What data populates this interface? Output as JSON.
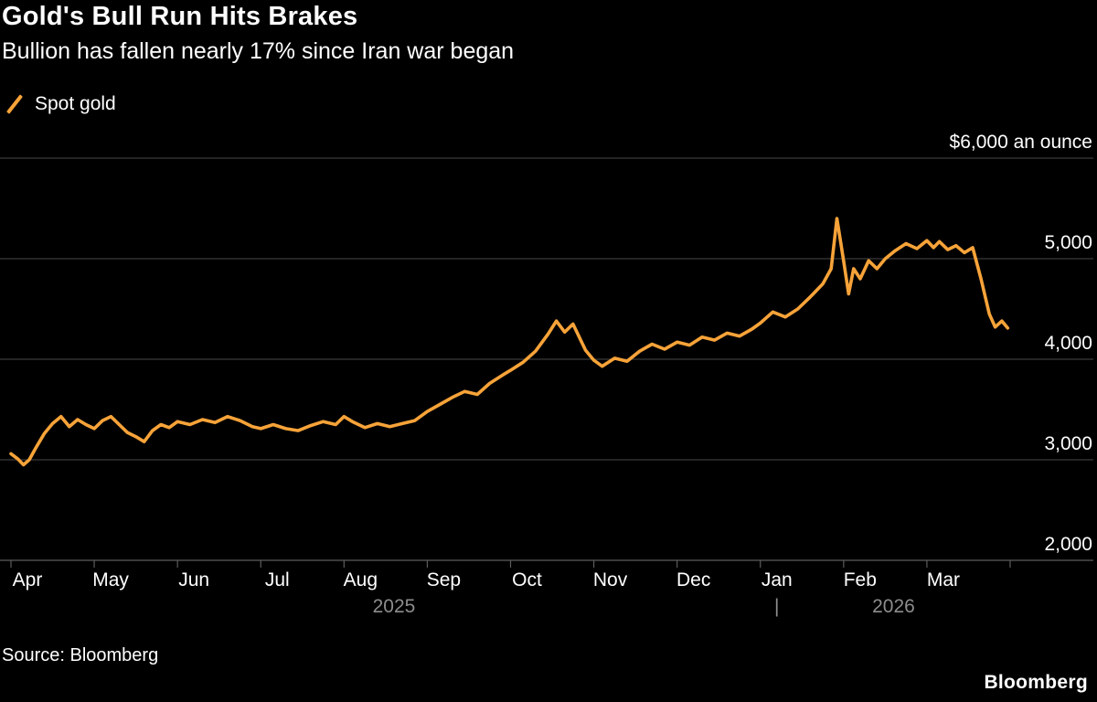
{
  "footer": {
    "source": "Source: Bloomberg",
    "brand": "Bloomberg"
  },
  "chart_data": {
    "type": "line",
    "title": "Gold's Bull Run Hits Brakes",
    "subtitle": "Bullion has fallen nearly 17% since Iran war began",
    "unit_label": "$6,000 an ounce",
    "legend": [
      {
        "name": "Spot gold",
        "color": "#f7a339"
      }
    ],
    "grid": "horizontal",
    "legend_position": "top-left",
    "ylim": [
      2000,
      6000
    ],
    "y_ticks": [
      2000,
      3000,
      4000,
      5000,
      6000
    ],
    "y_tick_labels": [
      "2,000",
      "3,000",
      "4,000",
      "5,000",
      "$6,000 an ounce"
    ],
    "x_tick_labels": [
      "Apr",
      "May",
      "Jun",
      "Jul",
      "Aug",
      "Sep",
      "Oct",
      "Nov",
      "Dec",
      "Jan",
      "Feb",
      "Mar"
    ],
    "year_labels": [
      {
        "label": "2025",
        "pos": 4.6
      },
      {
        "label": "2026",
        "pos": 10.6
      }
    ],
    "year_divider": "|",
    "series": [
      {
        "name": "Spot gold",
        "color": "#f7a339",
        "x": [
          0,
          0.08,
          0.15,
          0.22,
          0.3,
          0.4,
          0.5,
          0.6,
          0.7,
          0.8,
          0.9,
          1,
          1.1,
          1.2,
          1.3,
          1.4,
          1.5,
          1.6,
          1.7,
          1.8,
          1.9,
          2,
          2.15,
          2.3,
          2.45,
          2.6,
          2.75,
          2.9,
          3,
          3.15,
          3.3,
          3.45,
          3.6,
          3.75,
          3.9,
          4,
          4.1,
          4.25,
          4.4,
          4.55,
          4.7,
          4.85,
          5,
          5.15,
          5.3,
          5.45,
          5.6,
          5.75,
          5.9,
          6,
          6.15,
          6.3,
          6.45,
          6.55,
          6.65,
          6.75,
          6.9,
          7,
          7.1,
          7.25,
          7.4,
          7.55,
          7.7,
          7.85,
          8,
          8.15,
          8.3,
          8.45,
          8.6,
          8.75,
          8.9,
          9,
          9.15,
          9.3,
          9.45,
          9.6,
          9.75,
          9.85,
          9.92,
          10,
          10.06,
          10.12,
          10.2,
          10.3,
          10.4,
          10.5,
          10.62,
          10.75,
          10.88,
          11,
          11.08,
          11.15,
          11.25,
          11.35,
          11.45,
          11.55,
          11.65,
          11.75,
          11.82,
          11.9,
          11.97
        ],
        "values": [
          3060,
          3010,
          2950,
          3000,
          3120,
          3260,
          3360,
          3430,
          3330,
          3400,
          3350,
          3310,
          3390,
          3430,
          3350,
          3270,
          3230,
          3180,
          3290,
          3350,
          3320,
          3380,
          3350,
          3400,
          3370,
          3430,
          3390,
          3330,
          3310,
          3350,
          3310,
          3290,
          3340,
          3380,
          3350,
          3430,
          3380,
          3320,
          3360,
          3330,
          3360,
          3390,
          3480,
          3550,
          3620,
          3680,
          3650,
          3760,
          3840,
          3890,
          3970,
          4080,
          4250,
          4380,
          4270,
          4350,
          4090,
          3990,
          3930,
          4010,
          3980,
          4080,
          4150,
          4100,
          4170,
          4140,
          4220,
          4190,
          4260,
          4230,
          4300,
          4360,
          4470,
          4420,
          4500,
          4620,
          4750,
          4900,
          5400,
          4980,
          4650,
          4900,
          4800,
          4980,
          4900,
          5000,
          5080,
          5150,
          5100,
          5180,
          5110,
          5170,
          5090,
          5130,
          5060,
          5110,
          4800,
          4450,
          4320,
          4380,
          4310
        ]
      }
    ]
  }
}
